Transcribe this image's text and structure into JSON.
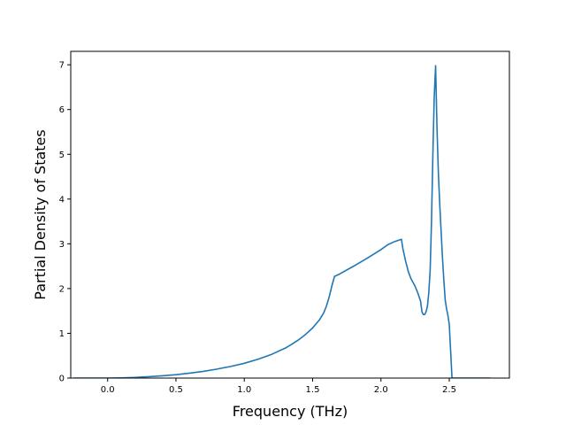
{
  "chart_data": {
    "type": "line",
    "title": "",
    "xlabel": "Frequency (THz)",
    "ylabel": "Partial Density of States",
    "xlim": [
      -0.27,
      2.94
    ],
    "ylim": [
      0,
      7.3
    ],
    "x_ticks": [
      0.0,
      0.5,
      1.0,
      1.5,
      2.0,
      2.5
    ],
    "x_tick_labels": [
      "0.0",
      "0.5",
      "1.0",
      "1.5",
      "2.0",
      "2.5"
    ],
    "y_ticks": [
      0,
      1,
      2,
      3,
      4,
      5,
      6,
      7
    ],
    "y_tick_labels": [
      "0",
      "1",
      "2",
      "3",
      "4",
      "5",
      "6",
      "7"
    ],
    "grid": false,
    "legend": "none",
    "series": [
      {
        "color": "#1f77b4",
        "x": [
          -0.25,
          0.0,
          0.1,
          0.2,
          0.3,
          0.4,
          0.5,
          0.6,
          0.7,
          0.8,
          0.9,
          1.0,
          1.1,
          1.2,
          1.3,
          1.35,
          1.4,
          1.45,
          1.5,
          1.55,
          1.58,
          1.6,
          1.62,
          1.64,
          1.66,
          1.7,
          1.8,
          1.9,
          2.0,
          2.05,
          2.1,
          2.15,
          2.16,
          2.18,
          2.2,
          2.22,
          2.25,
          2.27,
          2.29,
          2.3,
          2.31,
          2.32,
          2.33,
          2.34,
          2.35,
          2.36,
          2.37,
          2.38,
          2.39,
          2.4,
          2.41,
          2.42,
          2.43,
          2.44,
          2.45,
          2.46,
          2.47,
          2.48,
          2.49,
          2.5,
          2.51,
          2.52,
          2.53,
          2.54,
          2.6,
          2.7,
          2.8
        ],
        "y": [
          0,
          0,
          0.005,
          0.015,
          0.03,
          0.05,
          0.075,
          0.11,
          0.15,
          0.2,
          0.26,
          0.33,
          0.42,
          0.53,
          0.67,
          0.76,
          0.86,
          0.98,
          1.12,
          1.3,
          1.45,
          1.6,
          1.8,
          2.05,
          2.27,
          2.33,
          2.5,
          2.68,
          2.87,
          2.98,
          3.05,
          3.1,
          2.9,
          2.62,
          2.38,
          2.22,
          2.05,
          1.9,
          1.72,
          1.48,
          1.42,
          1.42,
          1.48,
          1.6,
          1.9,
          2.4,
          3.5,
          5.0,
          6.3,
          6.98,
          5.6,
          4.6,
          3.9,
          3.3,
          2.7,
          2.2,
          1.75,
          1.55,
          1.4,
          1.2,
          0.6,
          0,
          0,
          0,
          0,
          0,
          0
        ]
      }
    ]
  }
}
